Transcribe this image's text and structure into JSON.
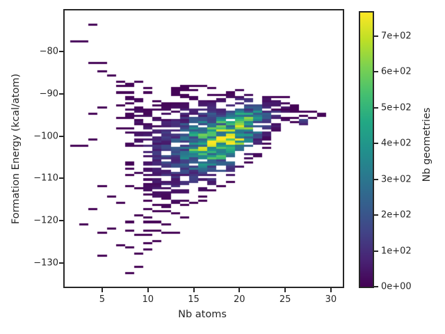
{
  "chart_data": {
    "type": "heatmap",
    "title": "",
    "xlabel": "Nb atoms",
    "ylabel": "Formation Energy (kcal/atom)",
    "colorbar_label": "Nb geometries",
    "colormap": "viridis",
    "xlim": [
      0.9,
      31.3
    ],
    "ylim": [
      -135.5,
      -70.4
    ],
    "grid": false,
    "x_ticks": {
      "values": [
        5,
        10,
        15,
        20,
        25,
        30
      ],
      "labels": [
        "5",
        "10",
        "15",
        "20",
        "25",
        "30"
      ]
    },
    "y_ticks": {
      "values": [
        -80,
        -90,
        -100,
        -110,
        -120,
        -130
      ],
      "labels": [
        "−80",
        "−90",
        "−100",
        "−110",
        "−120",
        "−130"
      ]
    },
    "colorbar_ticks": {
      "values": [
        0,
        100,
        200,
        300,
        400,
        500,
        600,
        700
      ],
      "labels": [
        "0e+00",
        "1e+02",
        "2e+02",
        "3e+02",
        "4e+02",
        "5e+02",
        "6e+02",
        "7e+02"
      ]
    },
    "vmin": 0,
    "vmax": 766,
    "x_bin_width": 1,
    "y_bin_height": 0.5,
    "seed": 20,
    "colormap_stops": [
      [
        0.0,
        "#440154"
      ],
      [
        0.1,
        "#482475"
      ],
      [
        0.2,
        "#414487"
      ],
      [
        0.3,
        "#355f8d"
      ],
      [
        0.4,
        "#2a788e"
      ],
      [
        0.5,
        "#21918c"
      ],
      [
        0.6,
        "#22a884"
      ],
      [
        0.7,
        "#44bf70"
      ],
      [
        0.8,
        "#7ad151"
      ],
      [
        0.9,
        "#bddf26"
      ],
      [
        1.0,
        "#fde725"
      ]
    ],
    "columns_format": [
      "x_atoms",
      "e_top",
      "e_bot",
      "mode_energy",
      "peak_count",
      "sigma_up",
      "sigma_down",
      "fill_fraction"
    ],
    "columns": [
      [
        8,
        -87.0,
        -110.0,
        -98.0,
        15,
        9.0,
        9.0,
        0.32
      ],
      [
        9,
        -87.2,
        -111.0,
        -99.0,
        30,
        8.0,
        8.0,
        0.45
      ],
      [
        10,
        -87.0,
        -112.5,
        -103.0,
        55,
        5.5,
        8.0,
        0.55
      ],
      [
        11,
        -87.4,
        -115.0,
        -103.5,
        85,
        5.0,
        7.0,
        0.65
      ],
      [
        12,
        -87.2,
        -116.5,
        -103.5,
        130,
        5.0,
        6.5,
        0.78
      ],
      [
        13,
        -86.8,
        -116.5,
        -103.0,
        180,
        5.0,
        6.0,
        0.82
      ],
      [
        14,
        -87.4,
        -115.0,
        -102.5,
        260,
        4.6,
        5.5,
        0.88
      ],
      [
        15,
        -88.0,
        -113.5,
        -102.0,
        380,
        4.3,
        5.0,
        0.92
      ],
      [
        16,
        -88.2,
        -112.8,
        -101.5,
        470,
        4.0,
        4.8,
        0.93
      ],
      [
        17,
        -88.4,
        -111.5,
        -101.0,
        560,
        3.8,
        4.5,
        0.95
      ],
      [
        18,
        -88.6,
        -110.4,
        -100.7,
        640,
        3.6,
        4.2,
        0.95
      ],
      [
        19,
        -89.0,
        -109.4,
        -100.0,
        620,
        3.4,
        4.0,
        0.95
      ],
      [
        20,
        -89.4,
        -107.6,
        -98.2,
        680,
        3.3,
        3.8,
        0.95
      ],
      [
        21,
        -89.8,
        -106.4,
        -97.0,
        430,
        3.0,
        3.6,
        0.93
      ],
      [
        22,
        -90.4,
        -104.6,
        -96.0,
        300,
        2.8,
        3.4,
        0.9
      ],
      [
        23,
        -90.8,
        -102.8,
        -95.3,
        170,
        2.5,
        3.0,
        0.85
      ],
      [
        24,
        -91.2,
        -100.6,
        -94.8,
        80,
        2.2,
        2.6,
        0.72
      ],
      [
        25,
        -92.0,
        -98.6,
        -94.5,
        40,
        1.8,
        2.2,
        0.5
      ],
      [
        26,
        -92.6,
        -97.0,
        -94.5,
        18,
        1.5,
        1.8,
        0.35
      ]
    ],
    "sparse_bars_format": [
      "x_atoms",
      "energy",
      "count"
    ],
    "sparse_bars": [
      [
        4,
        -73.6,
        8
      ],
      [
        2,
        -77.9,
        14
      ],
      [
        3,
        -77.9,
        10
      ],
      [
        4,
        -82.9,
        6
      ],
      [
        5,
        -82.5,
        5
      ],
      [
        5,
        -84.7,
        5
      ],
      [
        6,
        -85.8,
        5
      ],
      [
        5,
        -93.3,
        5
      ],
      [
        4,
        -94.9,
        4
      ],
      [
        2,
        -102.3,
        3
      ],
      [
        3,
        -102.4,
        4
      ],
      [
        4,
        -100.8,
        4
      ],
      [
        7,
        -87.3,
        5
      ],
      [
        7,
        -88.4,
        4
      ],
      [
        7,
        -89.6,
        3
      ],
      [
        7,
        -92.9,
        3
      ],
      [
        7,
        -95.5,
        3
      ],
      [
        7,
        -98.2,
        2
      ],
      [
        7,
        -115.8,
        3
      ],
      [
        7,
        -125.8,
        2
      ],
      [
        3,
        -120.5,
        3
      ],
      [
        4,
        -117.3,
        3
      ],
      [
        5,
        -111.7,
        3
      ],
      [
        5,
        -122.6,
        2
      ],
      [
        5,
        -128.4,
        2
      ],
      [
        6,
        -114.4,
        3
      ],
      [
        6,
        -121.9,
        3
      ],
      [
        8,
        -111.5,
        4
      ],
      [
        8,
        -120.3,
        3
      ],
      [
        8,
        -122.4,
        3
      ],
      [
        8,
        -126.3,
        2
      ],
      [
        8,
        -132.3,
        2
      ],
      [
        9,
        -112.1,
        4
      ],
      [
        9,
        -118.5,
        3
      ],
      [
        9,
        -123.1,
        3
      ],
      [
        9,
        -127.6,
        2
      ],
      [
        9,
        -130.9,
        2
      ],
      [
        10,
        -113.6,
        4
      ],
      [
        10,
        -115.1,
        3
      ],
      [
        10,
        -117.4,
        4
      ],
      [
        10,
        -119.1,
        3
      ],
      [
        10,
        -120.4,
        4
      ],
      [
        10,
        -122.1,
        3
      ],
      [
        10,
        -123.3,
        2
      ],
      [
        10,
        -125.1,
        2
      ],
      [
        10,
        -126.9,
        2
      ],
      [
        11,
        -116.1,
        4
      ],
      [
        11,
        -117.6,
        3
      ],
      [
        11,
        -120.1,
        3
      ],
      [
        11,
        -122.4,
        3
      ],
      [
        11,
        -124.9,
        2
      ],
      [
        12,
        -117.9,
        3
      ],
      [
        12,
        -120.6,
        3
      ],
      [
        12,
        -122.5,
        2
      ],
      [
        13,
        -118.1,
        3
      ],
      [
        13,
        -122.7,
        2
      ],
      [
        14,
        -116.1,
        3
      ],
      [
        14,
        -119.1,
        2
      ],
      [
        15,
        -115.6,
        3
      ],
      [
        16,
        -114.1,
        2
      ],
      [
        16,
        -115.4,
        2
      ],
      [
        17,
        -112.9,
        2
      ],
      [
        18,
        -111.6,
        2
      ],
      [
        19,
        -110.6,
        2
      ],
      [
        21,
        -106.1,
        4
      ],
      [
        24,
        -90.7,
        4
      ],
      [
        25,
        -90.9,
        4
      ],
      [
        26,
        -93.0,
        5
      ],
      [
        24,
        -93.6,
        6
      ],
      [
        25,
        -93.6,
        5
      ],
      [
        26,
        -93.7,
        5
      ],
      [
        26,
        -94.4,
        8
      ],
      [
        27,
        -94.4,
        10
      ],
      [
        28,
        -94.4,
        6
      ],
      [
        29,
        -94.5,
        14
      ],
      [
        29,
        -95.0,
        8
      ],
      [
        25,
        -95.9,
        4
      ],
      [
        26,
        -95.9,
        4
      ],
      [
        27,
        -95.3,
        6
      ],
      [
        28,
        -95.9,
        4
      ],
      [
        27,
        -96.4,
        150
      ],
      [
        27,
        -96.9,
        120
      ],
      [
        27,
        -97.1,
        70
      ]
    ],
    "highlights_format": [
      "x_atoms",
      "energy",
      "count"
    ],
    "highlights": [
      [
        18,
        -100.75,
        766
      ],
      [
        18,
        -101.25,
        700
      ],
      [
        20,
        -97.75,
        730
      ],
      [
        20,
        -98.25,
        620
      ],
      [
        19,
        -100.75,
        560
      ],
      [
        17,
        -100.75,
        530
      ],
      [
        18,
        -102.75,
        560
      ],
      [
        16,
        -101.75,
        460
      ],
      [
        15,
        -101.75,
        400
      ],
      [
        21,
        -97.25,
        430
      ],
      [
        19,
        -97.25,
        520
      ]
    ],
    "spine_color": "#262626",
    "text_color": "#262626",
    "background_color": "#ffffff"
  }
}
